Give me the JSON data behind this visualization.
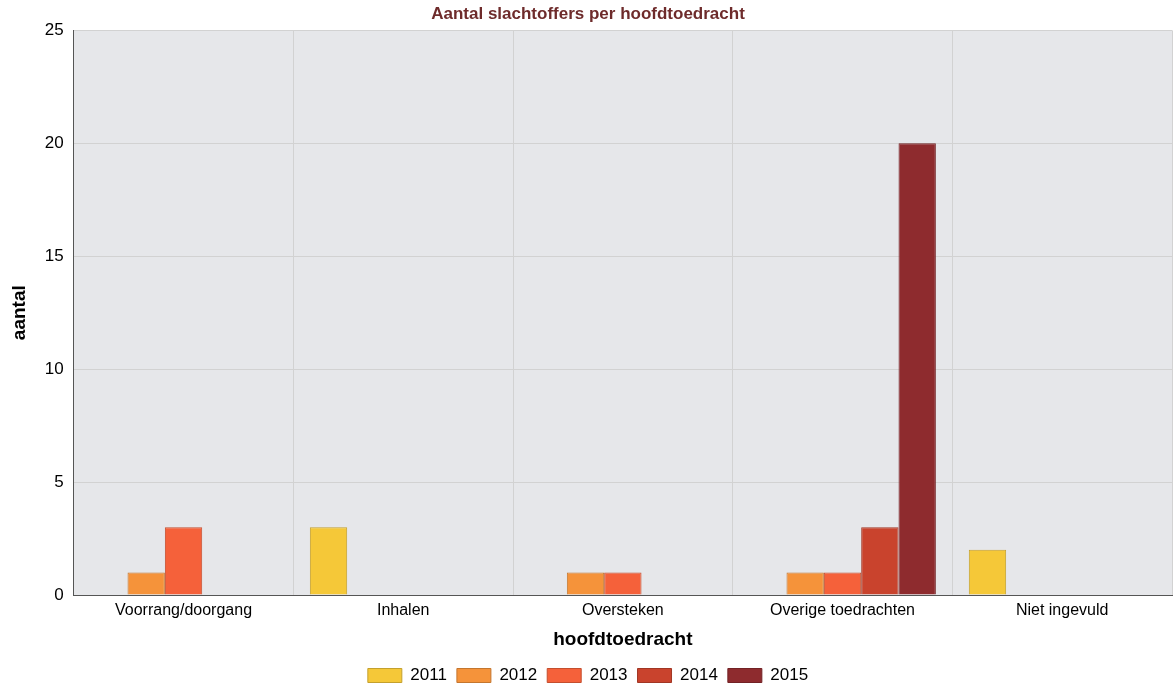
{
  "chart_data": {
    "type": "bar",
    "title": "Aantal slachtoffers per hoofdtoedracht",
    "xlabel": "hoofdtoedracht",
    "ylabel": "aantal",
    "categories": [
      "Voorrang/doorgang",
      "Inhalen",
      "Oversteken",
      "Overige toedrachten",
      "Niet ingevuld"
    ],
    "series": [
      {
        "name": "2011",
        "color": "#f5c838",
        "values": [
          0,
          3,
          0,
          0,
          2
        ]
      },
      {
        "name": "2012",
        "color": "#f5933a",
        "values": [
          1,
          0,
          1,
          1,
          0
        ]
      },
      {
        "name": "2013",
        "color": "#f5613a",
        "values": [
          3,
          0,
          1,
          1,
          0
        ]
      },
      {
        "name": "2014",
        "color": "#c9432d",
        "values": [
          0,
          0,
          0,
          3,
          0
        ]
      },
      {
        "name": "2015",
        "color": "#8e2b2e",
        "values": [
          0,
          0,
          0,
          20,
          0
        ]
      }
    ],
    "ylim": [
      0,
      25
    ],
    "yticks": [
      0,
      5,
      10,
      15,
      20,
      25
    ],
    "grid": true,
    "legend": "bottom"
  }
}
